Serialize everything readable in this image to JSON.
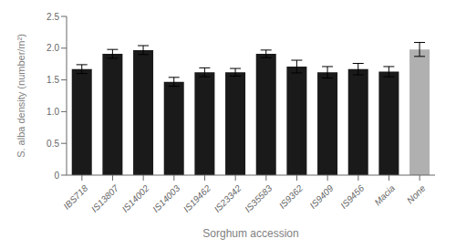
{
  "chart_data": {
    "type": "bar",
    "categories": [
      "IBS718",
      "IS13807",
      "IS14002",
      "IS14003",
      "IS19462",
      "IS23342",
      "IS35583",
      "IS9362",
      "IS9409",
      "IS9456",
      "Macia",
      "None"
    ],
    "values": [
      1.67,
      1.91,
      1.97,
      1.47,
      1.62,
      1.62,
      1.91,
      1.71,
      1.62,
      1.67,
      1.63,
      1.98
    ],
    "errors": [
      0.07,
      0.07,
      0.07,
      0.07,
      0.07,
      0.06,
      0.06,
      0.1,
      0.09,
      0.09,
      0.08,
      0.11
    ],
    "colors": [
      "#1a1a1a",
      "#1a1a1a",
      "#1a1a1a",
      "#1a1a1a",
      "#1a1a1a",
      "#1a1a1a",
      "#1a1a1a",
      "#1a1a1a",
      "#1a1a1a",
      "#1a1a1a",
      "#1a1a1a",
      "#b0b0b0"
    ],
    "xlabel": "Sorghum accession",
    "ylabel": "S. alba density (number/m²)",
    "ylim": [
      0,
      2.5
    ],
    "yticks": [
      0,
      0.5,
      {
        "value": 1.0,
        "label": "1.0"
      },
      1.5,
      {
        "value": 2.0,
        "label": "2.0"
      },
      2.5
    ],
    "grid": false
  }
}
